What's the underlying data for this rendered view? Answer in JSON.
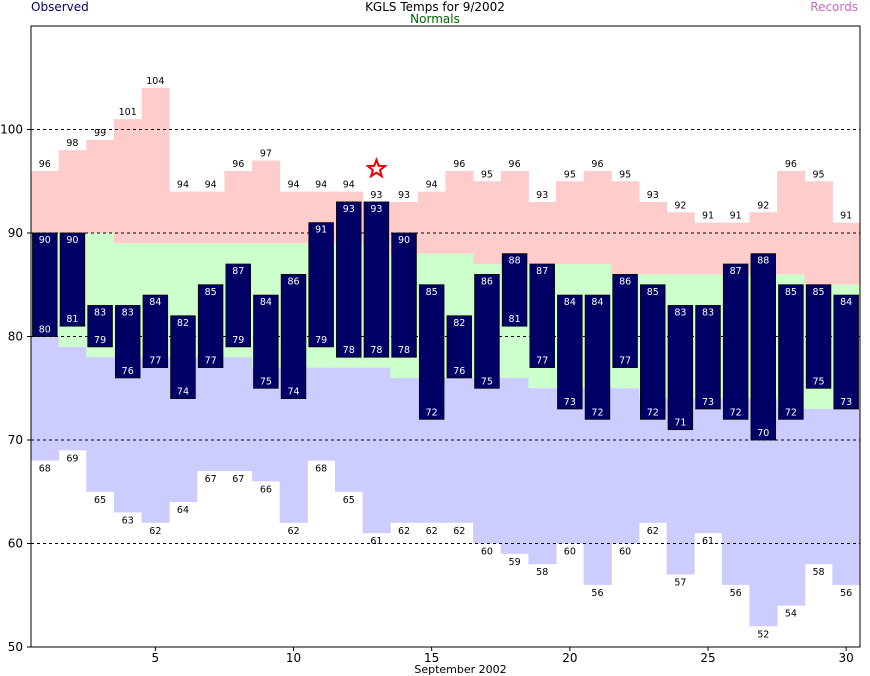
{
  "header": {
    "title": "KGLS Temps for 9/2002",
    "observed_label": "Observed",
    "normals_label": "Normals",
    "records_label": "Records"
  },
  "colors": {
    "observed_bar": "#000066",
    "normal_band": "#ccffcc",
    "record_high_band": "#ffcccc",
    "record_low_band": "#ccccff",
    "star": "#ee0000",
    "observed_text": "#000066",
    "normals_text": "#006600",
    "records_text": "#cc66cc"
  },
  "chart_data": {
    "type": "bar",
    "title": "KGLS Temps for 9/2002",
    "xlabel": "September 2002",
    "ylabel": "",
    "xlim": [
      1,
      30
    ],
    "ylim": [
      50,
      110
    ],
    "x_ticks": [
      5,
      10,
      15,
      20,
      25,
      30
    ],
    "y_ticks": [
      50,
      60,
      70,
      80,
      90,
      100
    ],
    "dashed_gridlines": [
      60,
      70,
      80,
      90,
      100
    ],
    "days": [
      1,
      2,
      3,
      4,
      5,
      6,
      7,
      8,
      9,
      10,
      11,
      12,
      13,
      14,
      15,
      16,
      17,
      18,
      19,
      20,
      21,
      22,
      23,
      24,
      25,
      26,
      27,
      28,
      29,
      30
    ],
    "series": [
      {
        "name": "Observed",
        "high": [
          90,
          90,
          83,
          83,
          84,
          82,
          85,
          87,
          84,
          86,
          91,
          93,
          93,
          90,
          85,
          82,
          86,
          88,
          87,
          84,
          84,
          86,
          85,
          83,
          83,
          87,
          88,
          85,
          85,
          84
        ],
        "low": [
          80,
          81,
          79,
          76,
          77,
          74,
          77,
          79,
          75,
          74,
          79,
          78,
          78,
          78,
          72,
          76,
          75,
          81,
          77,
          73,
          72,
          77,
          72,
          71,
          73,
          72,
          70,
          72,
          75,
          73
        ]
      },
      {
        "name": "Normals",
        "high": [
          90,
          90,
          90,
          89,
          89,
          89,
          89,
          89,
          89,
          89,
          89,
          89,
          89,
          88,
          88,
          88,
          87,
          87,
          87,
          87,
          87,
          86,
          86,
          86,
          86,
          86,
          86,
          86,
          85,
          85
        ],
        "low": [
          80,
          79,
          78,
          78,
          78,
          78,
          78,
          78,
          77,
          77,
          77,
          77,
          77,
          76,
          76,
          76,
          76,
          76,
          75,
          75,
          75,
          75,
          74,
          74,
          74,
          74,
          74,
          73,
          73,
          73
        ]
      },
      {
        "name": "Records",
        "high": [
          96,
          98,
          99,
          101,
          104,
          94,
          94,
          96,
          97,
          94,
          94,
          94,
          93,
          93,
          94,
          96,
          95,
          96,
          93,
          95,
          96,
          95,
          93,
          92,
          91,
          91,
          92,
          96,
          95,
          91
        ],
        "low": [
          68,
          69,
          65,
          63,
          62,
          64,
          67,
          67,
          66,
          62,
          68,
          65,
          61,
          62,
          62,
          62,
          60,
          59,
          58,
          60,
          56,
          60,
          62,
          57,
          61,
          56,
          52,
          54,
          58,
          56
        ]
      }
    ],
    "annotations": [
      {
        "type": "star",
        "day": 13,
        "value": 96
      }
    ]
  }
}
